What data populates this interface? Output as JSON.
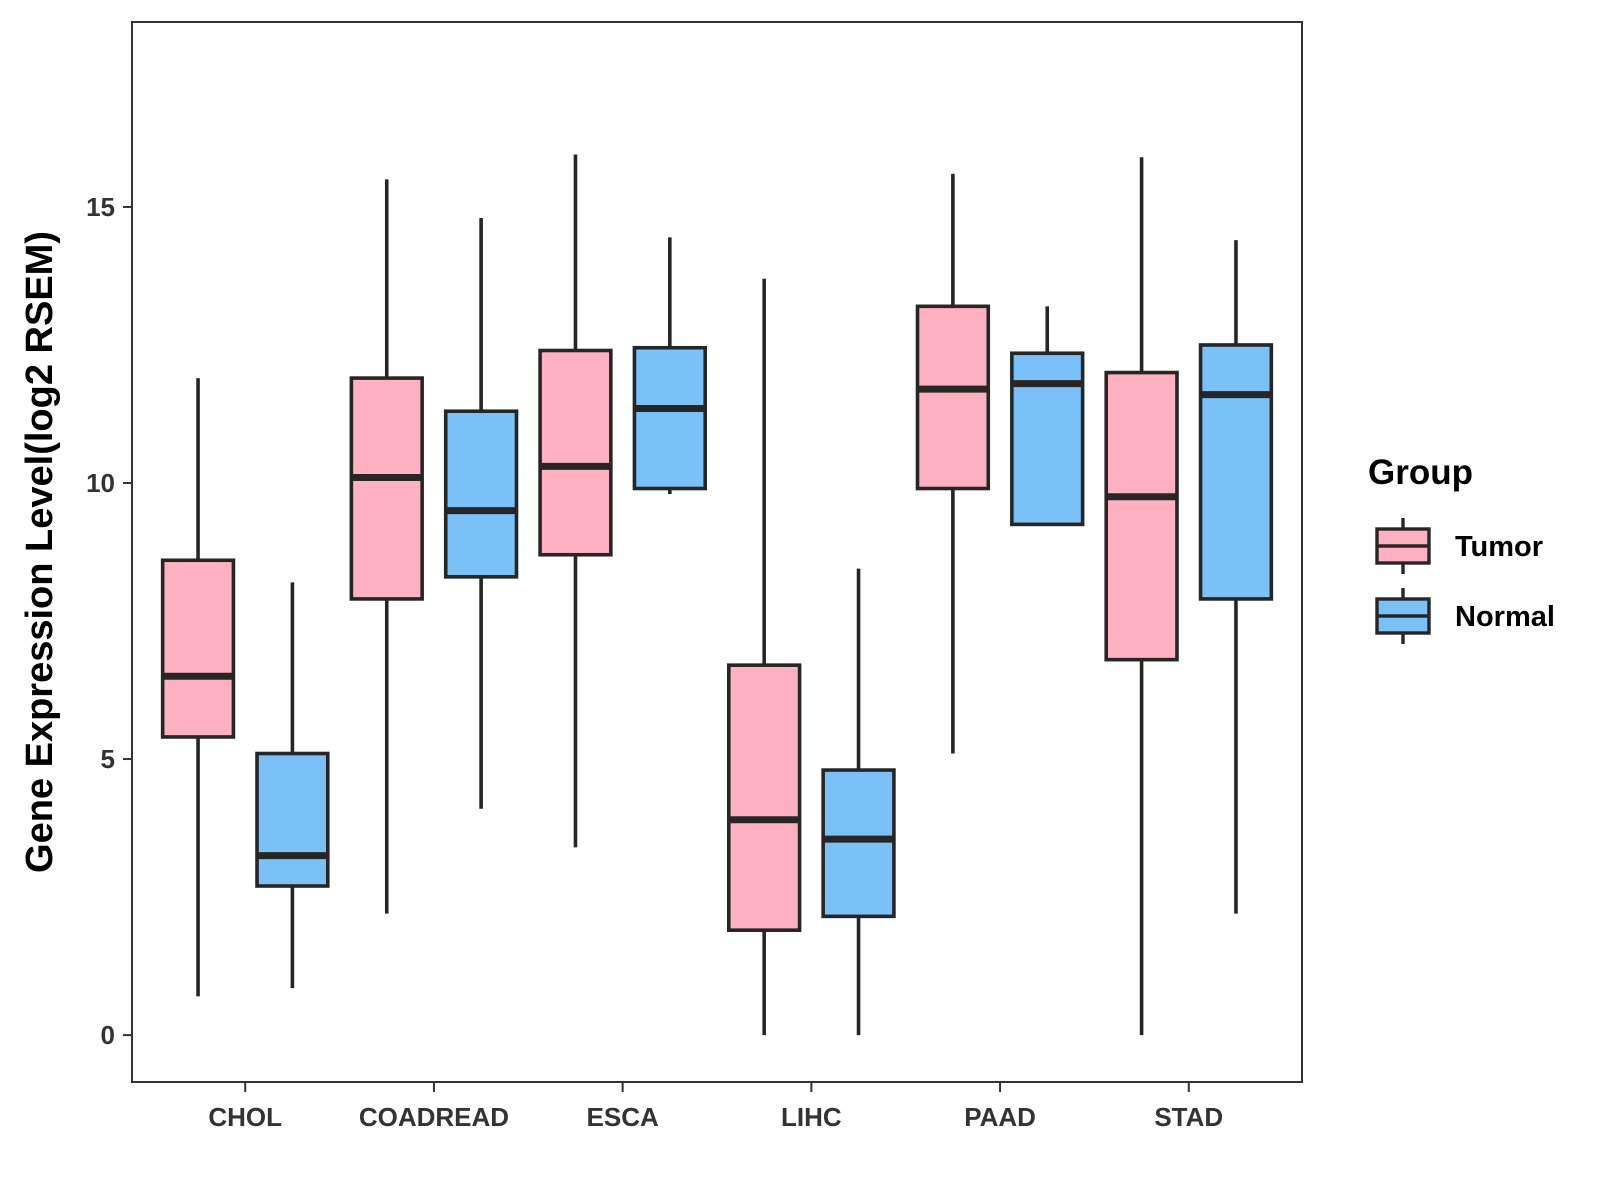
{
  "chart_data": {
    "type": "boxplot",
    "title": "",
    "xlabel": "",
    "ylabel": "Gene Expression Level(log2 RSEM)",
    "ylim": [
      -0.85,
      18.35
    ],
    "yticks": [
      0,
      5,
      10,
      15
    ],
    "ytick_labels": [
      "0",
      "5",
      "10",
      "15"
    ],
    "grid": false,
    "categories": [
      "CHOL",
      "COADREAD",
      "ESCA",
      "LIHC",
      "PAAD",
      "STAD"
    ],
    "legend": {
      "title": "Group",
      "position": "right",
      "entries": [
        "Tumor",
        "Normal"
      ]
    },
    "series": [
      {
        "name": "Tumor",
        "color": "#FFB0C3",
        "boxes": [
          {
            "whisker_low": 0.7,
            "q1": 5.4,
            "median": 6.5,
            "q3": 8.6,
            "whisker_high": 11.9
          },
          {
            "whisker_low": 2.2,
            "q1": 7.9,
            "median": 10.1,
            "q3": 11.9,
            "whisker_high": 15.5
          },
          {
            "whisker_low": 3.4,
            "q1": 8.7,
            "median": 10.3,
            "q3": 12.4,
            "whisker_high": 15.95
          },
          {
            "whisker_low": 0.0,
            "q1": 1.9,
            "median": 3.9,
            "q3": 6.7,
            "whisker_high": 13.7
          },
          {
            "whisker_low": 5.1,
            "q1": 9.9,
            "median": 11.7,
            "q3": 13.2,
            "whisker_high": 15.6
          },
          {
            "whisker_low": 0.0,
            "q1": 6.8,
            "median": 9.75,
            "q3": 12.0,
            "whisker_high": 15.9
          }
        ]
      },
      {
        "name": "Normal",
        "color": "#79C1F7",
        "boxes": [
          {
            "whisker_low": 0.85,
            "q1": 2.7,
            "median": 3.25,
            "q3": 5.1,
            "whisker_high": 8.2
          },
          {
            "whisker_low": 4.1,
            "q1": 8.3,
            "median": 9.5,
            "q3": 11.3,
            "whisker_high": 14.8
          },
          {
            "whisker_low": 9.8,
            "q1": 9.9,
            "median": 11.35,
            "q3": 12.45,
            "whisker_high": 14.45
          },
          {
            "whisker_low": 0.0,
            "q1": 2.15,
            "median": 3.55,
            "q3": 4.8,
            "whisker_high": 8.45
          },
          {
            "whisker_low": 9.25,
            "q1": 9.25,
            "median": 11.8,
            "q3": 12.35,
            "whisker_high": 13.2
          },
          {
            "whisker_low": 2.2,
            "q1": 7.9,
            "median": 11.6,
            "q3": 12.5,
            "whisker_high": 14.4
          }
        ]
      }
    ]
  }
}
